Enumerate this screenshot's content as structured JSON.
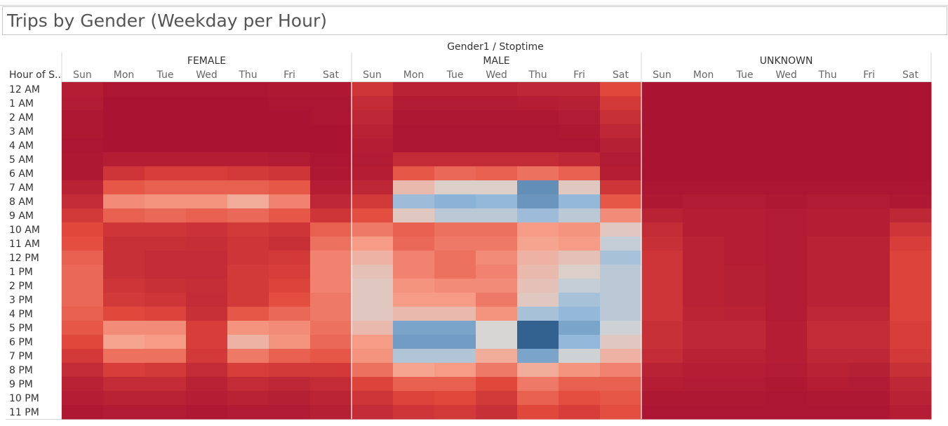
{
  "title": "Trips by Gender (Weekday per Hour)",
  "chart_data": {
    "type": "heatmap",
    "column_title": "Gender1 / Stoptime",
    "row_header": "Hour of S..",
    "groups": [
      "FEMALE",
      "MALE",
      "UNKNOWN"
    ],
    "days": [
      "Sun",
      "Mon",
      "Tue",
      "Wed",
      "Thu",
      "Fri",
      "Sat"
    ],
    "hours": [
      "12 AM",
      "1 AM",
      "2 AM",
      "3 AM",
      "4 AM",
      "5 AM",
      "6 AM",
      "7 AM",
      "8 AM",
      "9 AM",
      "10 AM",
      "11 AM",
      "12 PM",
      "1 PM",
      "2 PM",
      "3 PM",
      "4 PM",
      "5 PM",
      "6 PM",
      "7 PM",
      "8 PM",
      "9 PM",
      "10 PM",
      "11 PM"
    ],
    "color_scale": {
      "low": "#a50f31",
      "mid": "#d8d6d4",
      "high": "#2b5a8a"
    },
    "value_range": [
      0,
      1
    ],
    "values": {
      "FEMALE": [
        [
          0.06,
          0.03,
          0.03,
          0.03,
          0.03,
          0.04,
          0.04
        ],
        [
          0.05,
          0.02,
          0.02,
          0.02,
          0.02,
          0.03,
          0.03
        ],
        [
          0.04,
          0.02,
          0.02,
          0.02,
          0.02,
          0.02,
          0.03
        ],
        [
          0.04,
          0.02,
          0.02,
          0.02,
          0.02,
          0.02,
          0.02
        ],
        [
          0.03,
          0.02,
          0.02,
          0.02,
          0.02,
          0.02,
          0.02
        ],
        [
          0.04,
          0.06,
          0.06,
          0.06,
          0.06,
          0.05,
          0.03
        ],
        [
          0.04,
          0.16,
          0.2,
          0.2,
          0.18,
          0.16,
          0.04
        ],
        [
          0.08,
          0.28,
          0.3,
          0.3,
          0.3,
          0.28,
          0.06
        ],
        [
          0.12,
          0.4,
          0.42,
          0.42,
          0.48,
          0.38,
          0.1
        ],
        [
          0.18,
          0.3,
          0.32,
          0.3,
          0.32,
          0.28,
          0.16
        ],
        [
          0.24,
          0.16,
          0.16,
          0.15,
          0.18,
          0.16,
          0.3
        ],
        [
          0.26,
          0.14,
          0.14,
          0.13,
          0.16,
          0.14,
          0.34
        ],
        [
          0.3,
          0.14,
          0.12,
          0.12,
          0.16,
          0.18,
          0.38
        ],
        [
          0.32,
          0.14,
          0.12,
          0.12,
          0.18,
          0.2,
          0.38
        ],
        [
          0.32,
          0.16,
          0.14,
          0.13,
          0.18,
          0.22,
          0.38
        ],
        [
          0.32,
          0.18,
          0.16,
          0.12,
          0.18,
          0.26,
          0.36
        ],
        [
          0.3,
          0.24,
          0.22,
          0.14,
          0.28,
          0.32,
          0.36
        ],
        [
          0.28,
          0.4,
          0.4,
          0.2,
          0.42,
          0.4,
          0.34
        ],
        [
          0.24,
          0.46,
          0.44,
          0.2,
          0.5,
          0.42,
          0.32
        ],
        [
          0.18,
          0.34,
          0.34,
          0.18,
          0.36,
          0.3,
          0.28
        ],
        [
          0.12,
          0.2,
          0.18,
          0.12,
          0.2,
          0.18,
          0.18
        ],
        [
          0.08,
          0.12,
          0.12,
          0.08,
          0.12,
          0.1,
          0.12
        ],
        [
          0.06,
          0.08,
          0.08,
          0.06,
          0.08,
          0.07,
          0.09
        ],
        [
          0.04,
          0.05,
          0.05,
          0.04,
          0.05,
          0.05,
          0.07
        ]
      ],
      "MALE": [
        [
          0.16,
          0.08,
          0.08,
          0.08,
          0.1,
          0.1,
          0.24
        ],
        [
          0.12,
          0.05,
          0.05,
          0.05,
          0.06,
          0.07,
          0.18
        ],
        [
          0.1,
          0.04,
          0.04,
          0.04,
          0.04,
          0.05,
          0.14
        ],
        [
          0.08,
          0.03,
          0.03,
          0.03,
          0.03,
          0.04,
          0.1
        ],
        [
          0.06,
          0.03,
          0.03,
          0.03,
          0.03,
          0.03,
          0.07
        ],
        [
          0.05,
          0.12,
          0.12,
          0.12,
          0.12,
          0.1,
          0.05
        ],
        [
          0.06,
          0.28,
          0.32,
          0.3,
          0.34,
          0.3,
          0.06
        ],
        [
          0.1,
          0.52,
          0.58,
          0.58,
          0.86,
          0.56,
          0.16
        ],
        [
          0.18,
          0.72,
          0.76,
          0.74,
          0.84,
          0.74,
          0.28
        ],
        [
          0.26,
          0.56,
          0.66,
          0.66,
          0.72,
          0.66,
          0.4
        ],
        [
          0.36,
          0.3,
          0.34,
          0.34,
          0.44,
          0.42,
          0.56
        ],
        [
          0.44,
          0.32,
          0.36,
          0.36,
          0.46,
          0.44,
          0.64
        ],
        [
          0.5,
          0.38,
          0.34,
          0.4,
          0.5,
          0.54,
          0.7
        ],
        [
          0.54,
          0.38,
          0.34,
          0.38,
          0.52,
          0.58,
          0.66
        ],
        [
          0.56,
          0.42,
          0.4,
          0.4,
          0.54,
          0.64,
          0.66
        ],
        [
          0.56,
          0.44,
          0.44,
          0.36,
          0.56,
          0.7,
          0.66
        ],
        [
          0.56,
          0.52,
          0.52,
          0.42,
          0.7,
          0.74,
          0.66
        ],
        [
          0.52,
          0.8,
          0.8,
          0.6,
          0.98,
          0.8,
          0.62
        ],
        [
          0.44,
          0.82,
          0.82,
          0.6,
          0.98,
          0.74,
          0.56
        ],
        [
          0.42,
          0.68,
          0.68,
          0.48,
          0.8,
          0.62,
          0.5
        ],
        [
          0.34,
          0.46,
          0.44,
          0.36,
          0.48,
          0.42,
          0.38
        ],
        [
          0.22,
          0.3,
          0.3,
          0.24,
          0.36,
          0.3,
          0.3
        ],
        [
          0.16,
          0.22,
          0.24,
          0.18,
          0.3,
          0.26,
          0.28
        ],
        [
          0.12,
          0.16,
          0.18,
          0.14,
          0.24,
          0.2,
          0.26
        ]
      ],
      "UNKNOWN": [
        [
          0.02,
          0.02,
          0.02,
          0.02,
          0.02,
          0.02,
          0.02
        ],
        [
          0.02,
          0.02,
          0.02,
          0.02,
          0.02,
          0.02,
          0.02
        ],
        [
          0.02,
          0.02,
          0.02,
          0.02,
          0.02,
          0.02,
          0.02
        ],
        [
          0.02,
          0.02,
          0.02,
          0.02,
          0.02,
          0.02,
          0.02
        ],
        [
          0.02,
          0.02,
          0.02,
          0.02,
          0.02,
          0.02,
          0.02
        ],
        [
          0.02,
          0.02,
          0.02,
          0.02,
          0.02,
          0.02,
          0.02
        ],
        [
          0.02,
          0.02,
          0.02,
          0.02,
          0.02,
          0.02,
          0.02
        ],
        [
          0.03,
          0.03,
          0.03,
          0.03,
          0.03,
          0.03,
          0.03
        ],
        [
          0.04,
          0.05,
          0.05,
          0.04,
          0.05,
          0.05,
          0.04
        ],
        [
          0.08,
          0.06,
          0.06,
          0.05,
          0.06,
          0.06,
          0.1
        ],
        [
          0.12,
          0.06,
          0.06,
          0.05,
          0.06,
          0.06,
          0.16
        ],
        [
          0.14,
          0.08,
          0.06,
          0.05,
          0.08,
          0.08,
          0.2
        ],
        [
          0.16,
          0.08,
          0.06,
          0.05,
          0.08,
          0.08,
          0.22
        ],
        [
          0.16,
          0.08,
          0.07,
          0.05,
          0.08,
          0.08,
          0.22
        ],
        [
          0.16,
          0.08,
          0.07,
          0.05,
          0.08,
          0.08,
          0.22
        ],
        [
          0.16,
          0.08,
          0.07,
          0.05,
          0.08,
          0.08,
          0.22
        ],
        [
          0.16,
          0.09,
          0.08,
          0.05,
          0.1,
          0.1,
          0.22
        ],
        [
          0.14,
          0.1,
          0.1,
          0.06,
          0.12,
          0.12,
          0.2
        ],
        [
          0.14,
          0.1,
          0.1,
          0.06,
          0.12,
          0.12,
          0.2
        ],
        [
          0.12,
          0.08,
          0.08,
          0.06,
          0.1,
          0.1,
          0.18
        ],
        [
          0.08,
          0.06,
          0.06,
          0.05,
          0.08,
          0.07,
          0.14
        ],
        [
          0.06,
          0.05,
          0.05,
          0.04,
          0.06,
          0.05,
          0.1
        ],
        [
          0.04,
          0.04,
          0.04,
          0.03,
          0.04,
          0.04,
          0.08
        ],
        [
          0.03,
          0.03,
          0.03,
          0.03,
          0.03,
          0.03,
          0.06
        ]
      ]
    }
  }
}
